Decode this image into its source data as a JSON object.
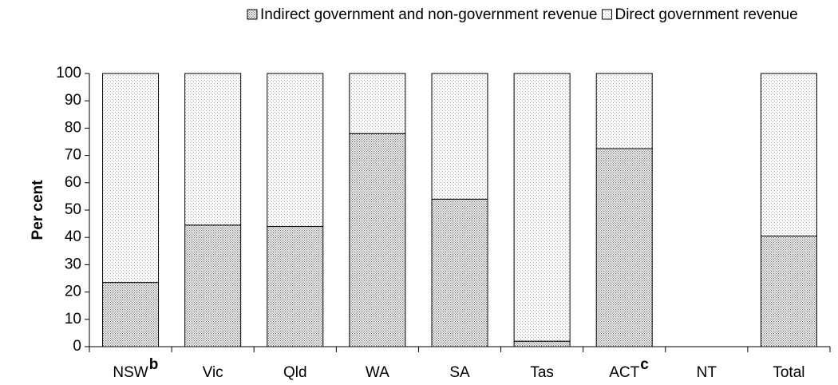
{
  "chart_data": {
    "type": "stacked-bar",
    "y_label": "Per cent",
    "categories": [
      "NSW",
      "Vic",
      "Qld",
      "WA",
      "SA",
      "Tas",
      "ACT",
      "NT",
      "Total"
    ],
    "category_notes": [
      "b",
      null,
      null,
      null,
      null,
      null,
      "c",
      null,
      null
    ],
    "series": [
      {
        "name": "Indirect government and non-government revenue",
        "color": "#666666",
        "values": [
          23.5,
          44.5,
          44,
          78,
          54,
          2,
          72.5,
          null,
          40.5
        ]
      },
      {
        "name": "Direct government revenue",
        "color": "#aaaaaa",
        "values": [
          76.5,
          55.5,
          56,
          22,
          46,
          98,
          27.5,
          null,
          59.5
        ]
      }
    ],
    "ylim": [
      0,
      100
    ],
    "yticks": [
      0,
      10,
      20,
      30,
      40,
      50,
      60,
      70,
      80,
      90,
      100
    ]
  }
}
